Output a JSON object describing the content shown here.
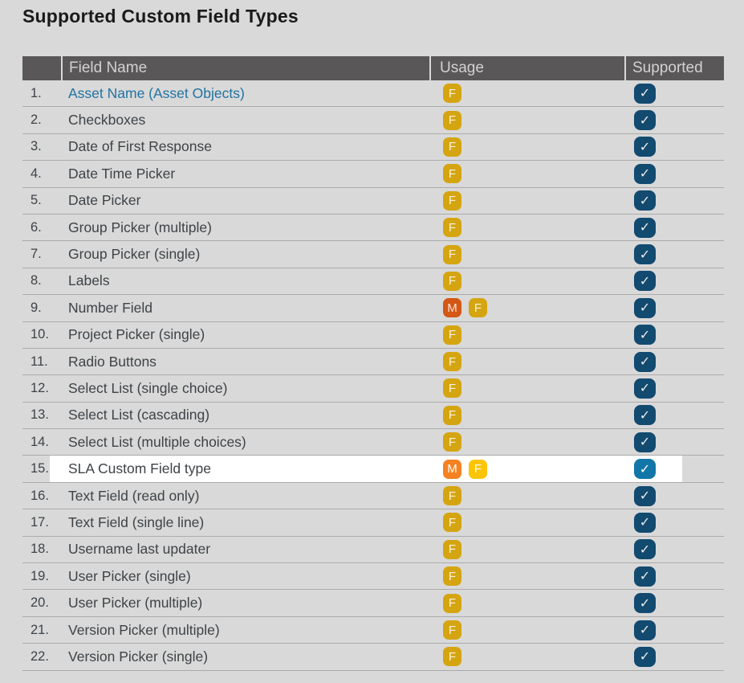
{
  "title": "Supported Custom Field Types",
  "table": {
    "headers": {
      "num": "",
      "field_name": "Field Name",
      "usage": "Usage",
      "supported": "Supported"
    },
    "rows": [
      {
        "num": "1.",
        "name": "Asset Name (Asset Objects)",
        "is_link": true,
        "usage": [
          "F"
        ],
        "supported": true,
        "highlighted": false
      },
      {
        "num": "2.",
        "name": "Checkboxes",
        "is_link": false,
        "usage": [
          "F"
        ],
        "supported": true,
        "highlighted": false
      },
      {
        "num": "3.",
        "name": "Date of First Response",
        "is_link": false,
        "usage": [
          "F"
        ],
        "supported": true,
        "highlighted": false
      },
      {
        "num": "4.",
        "name": "Date Time Picker",
        "is_link": false,
        "usage": [
          "F"
        ],
        "supported": true,
        "highlighted": false
      },
      {
        "num": "5.",
        "name": "Date Picker",
        "is_link": false,
        "usage": [
          "F"
        ],
        "supported": true,
        "highlighted": false
      },
      {
        "num": "6.",
        "name": "Group Picker (multiple)",
        "is_link": false,
        "usage": [
          "F"
        ],
        "supported": true,
        "highlighted": false
      },
      {
        "num": "7.",
        "name": "Group Picker (single)",
        "is_link": false,
        "usage": [
          "F"
        ],
        "supported": true,
        "highlighted": false
      },
      {
        "num": "8.",
        "name": "Labels",
        "is_link": false,
        "usage": [
          "F"
        ],
        "supported": true,
        "highlighted": false
      },
      {
        "num": "9.",
        "name": "Number Field",
        "is_link": false,
        "usage": [
          "M",
          "F"
        ],
        "supported": true,
        "highlighted": false
      },
      {
        "num": "10.",
        "name": "Project Picker (single)",
        "is_link": false,
        "usage": [
          "F"
        ],
        "supported": true,
        "highlighted": false
      },
      {
        "num": "11.",
        "name": "Radio Buttons",
        "is_link": false,
        "usage": [
          "F"
        ],
        "supported": true,
        "highlighted": false
      },
      {
        "num": "12.",
        "name": "Select List (single choice)",
        "is_link": false,
        "usage": [
          "F"
        ],
        "supported": true,
        "highlighted": false
      },
      {
        "num": "13.",
        "name": "Select List (cascading)",
        "is_link": false,
        "usage": [
          "F"
        ],
        "supported": true,
        "highlighted": false
      },
      {
        "num": "14.",
        "name": "Select List (multiple choices)",
        "is_link": false,
        "usage": [
          "F"
        ],
        "supported": true,
        "highlighted": false
      },
      {
        "num": "15.",
        "name": "SLA Custom Field type",
        "is_link": false,
        "usage": [
          "M",
          "F"
        ],
        "supported": true,
        "highlighted": true
      },
      {
        "num": "16.",
        "name": "Text Field (read only)",
        "is_link": false,
        "usage": [
          "F"
        ],
        "supported": true,
        "highlighted": false
      },
      {
        "num": "17.",
        "name": "Text Field (single line)",
        "is_link": false,
        "usage": [
          "F"
        ],
        "supported": true,
        "highlighted": false
      },
      {
        "num": "18.",
        "name": "Username last updater",
        "is_link": false,
        "usage": [
          "F"
        ],
        "supported": true,
        "highlighted": false
      },
      {
        "num": "19.",
        "name": "User Picker (single)",
        "is_link": false,
        "usage": [
          "F"
        ],
        "supported": true,
        "highlighted": false
      },
      {
        "num": "20.",
        "name": "User Picker (multiple)",
        "is_link": false,
        "usage": [
          "F"
        ],
        "supported": true,
        "highlighted": false
      },
      {
        "num": "21.",
        "name": "Version Picker (multiple)",
        "is_link": false,
        "usage": [
          "F"
        ],
        "supported": true,
        "highlighted": false
      },
      {
        "num": "22.",
        "name": "Version Picker (single)",
        "is_link": false,
        "usage": [
          "F"
        ],
        "supported": true,
        "highlighted": false
      }
    ]
  },
  "icons": {
    "check": "✓"
  },
  "colors": {
    "page_bg": "#d9d9d9",
    "header_bg": "#595757",
    "header_text": "#d3d1d1",
    "row_text": "#3e4347",
    "link": "#2173a1",
    "separator": "#ababab",
    "highlight_bg": "#ffffff",
    "badge_f": "#d5a511",
    "badge_m": "#d45715",
    "badge_f_bright": "#fbc504",
    "badge_m_bright": "#f58220",
    "check_badge": "#124a70",
    "check_badge_bright": "#1277a8"
  }
}
